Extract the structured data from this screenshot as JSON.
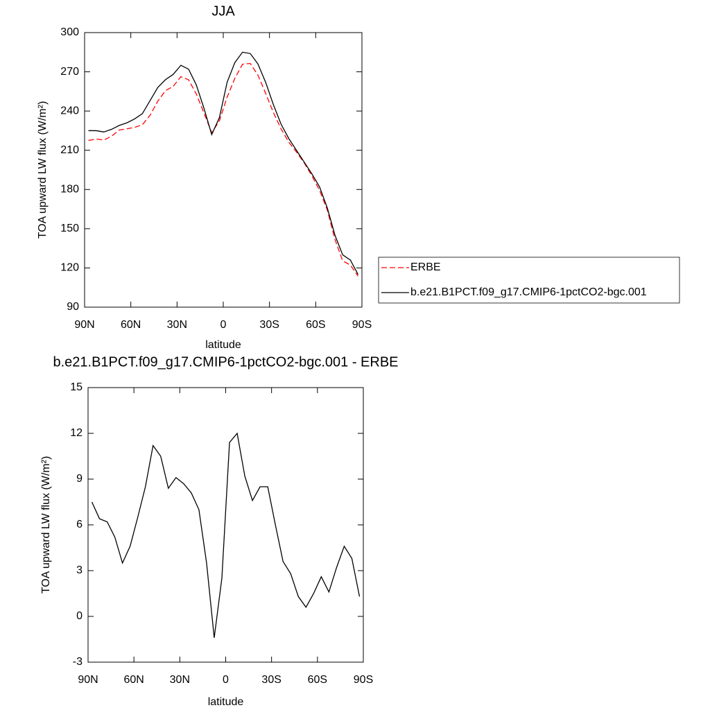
{
  "chart_data": [
    {
      "type": "line",
      "title": "JJA",
      "xlabel": "latitude",
      "ylabel": "TOA upward LW flux (W/m²)",
      "x": [
        87.5,
        82.5,
        77.5,
        72.5,
        67.5,
        62.5,
        57.5,
        52.5,
        47.5,
        42.5,
        37.5,
        32.5,
        27.5,
        22.5,
        17.5,
        12.5,
        7.5,
        2.5,
        -2.5,
        -7.5,
        -12.5,
        -17.5,
        -22.5,
        -27.5,
        -32.5,
        -37.5,
        -42.5,
        -47.5,
        -52.5,
        -57.5,
        -62.5,
        -67.5,
        -72.5,
        -77.5,
        -82.5,
        -87.5
      ],
      "series": [
        {
          "name": "ERBE",
          "color": "#ff0000",
          "dash": true,
          "values": [
            217.5,
            218.6,
            217.8,
            220.8,
            225.5,
            226.4,
            227.5,
            229.5,
            236.8,
            247.5,
            255.6,
            258.9,
            266.3,
            263.9,
            253,
            238.5,
            223.4,
            232.5,
            250.6,
            265,
            275.8,
            276.4,
            267.5,
            253.5,
            239,
            226.4,
            216.2,
            208.7,
            200.4,
            190.5,
            179.4,
            164.4,
            141.8,
            125.4,
            122.2,
            113.7
          ]
        },
        {
          "name": "b.e21.B1PCT.f09_g17.CMIP6-1pctCO2-bgc.001",
          "color": "#000000",
          "dash": false,
          "values": [
            225,
            225,
            224,
            226,
            229,
            231,
            234,
            238,
            248,
            258,
            264,
            268,
            275,
            272,
            260,
            242,
            222,
            235,
            262,
            277,
            285,
            284,
            276,
            262,
            245,
            230,
            219,
            210,
            201,
            192,
            182,
            166,
            145,
            130,
            126,
            115
          ]
        }
      ],
      "xlim": [
        90,
        -90
      ],
      "xticks": [
        {
          "value": 90,
          "label": "90N"
        },
        {
          "value": 60,
          "label": "60N"
        },
        {
          "value": 30,
          "label": "30N"
        },
        0,
        {
          "value": -30,
          "label": "30S"
        },
        {
          "value": -60,
          "label": "60S"
        },
        {
          "value": -90,
          "label": "90S"
        }
      ],
      "ylim": [
        90,
        300
      ],
      "yticks": [
        90,
        120,
        150,
        180,
        210,
        240,
        270,
        300
      ],
      "legend": "outside-right"
    },
    {
      "type": "line",
      "title": "b.e21.B1PCT.f09_g17.CMIP6-1pctCO2-bgc.001 - ERBE",
      "xlabel": "latitude",
      "ylabel": "TOA upward LW flux (W/m²)",
      "x": [
        87.5,
        82.5,
        77.5,
        72.5,
        67.5,
        62.5,
        57.5,
        52.5,
        47.5,
        42.5,
        37.5,
        32.5,
        27.5,
        22.5,
        17.5,
        12.5,
        7.5,
        2.5,
        -2.5,
        -7.5,
        -12.5,
        -17.5,
        -22.5,
        -27.5,
        -32.5,
        -37.5,
        -42.5,
        -47.5,
        -52.5,
        -57.5,
        -62.5,
        -67.5,
        -72.5,
        -77.5,
        -82.5,
        -87.5
      ],
      "series": [
        {
          "color": "#000000",
          "dash": false,
          "values": [
            7.5,
            6.4,
            6.2,
            5.2,
            3.5,
            4.6,
            6.5,
            8.5,
            11.2,
            10.5,
            8.4,
            9.1,
            8.7,
            8.1,
            7.0,
            3.5,
            -1.4,
            2.5,
            11.4,
            12.0,
            9.2,
            7.6,
            8.5,
            8.5,
            6.0,
            3.6,
            2.8,
            1.3,
            0.6,
            1.5,
            2.6,
            1.6,
            3.2,
            4.6,
            3.8,
            1.3
          ]
        }
      ],
      "xlim": [
        90,
        -90
      ],
      "xticks": [
        {
          "value": 90,
          "label": "90N"
        },
        {
          "value": 60,
          "label": "60N"
        },
        {
          "value": 30,
          "label": "30N"
        },
        0,
        {
          "value": -30,
          "label": "30S"
        },
        {
          "value": -60,
          "label": "60S"
        },
        {
          "value": -90,
          "label": "90S"
        }
      ],
      "ylim": [
        -3,
        15
      ],
      "yticks": [
        -3,
        0,
        3,
        6,
        9,
        12,
        15
      ]
    }
  ]
}
